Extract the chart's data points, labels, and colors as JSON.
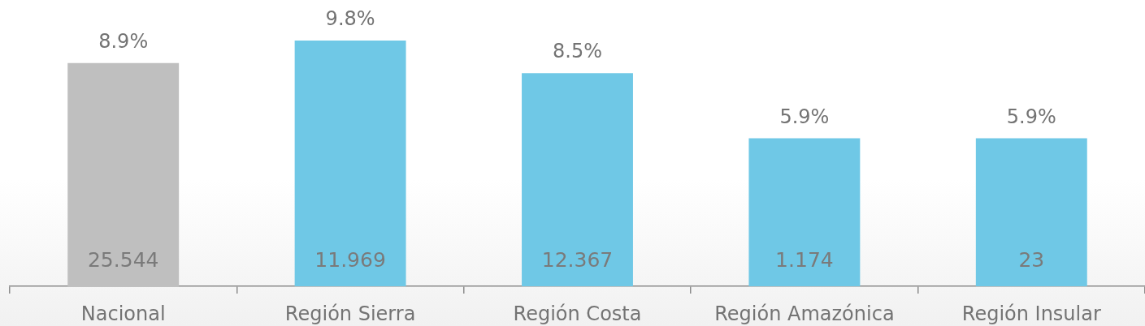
{
  "chart_data": {
    "type": "bar",
    "categories": [
      "Nacional",
      "Región Sierra",
      "Región Costa",
      "Región Amazónica",
      "Región Insular"
    ],
    "values": [
      8.9,
      9.8,
      8.5,
      5.9,
      5.9
    ],
    "colors": [
      "#bfbfbf",
      "#6fc8e6",
      "#6fc8e6",
      "#6fc8e6",
      "#6fc8e6"
    ],
    "value_labels": [
      "8.9%",
      "9.8%",
      "8.5%",
      "5.9%",
      "5.9%"
    ],
    "annotations": [
      "25.544",
      "11.969",
      "12.367",
      "1.174",
      "23"
    ]
  }
}
